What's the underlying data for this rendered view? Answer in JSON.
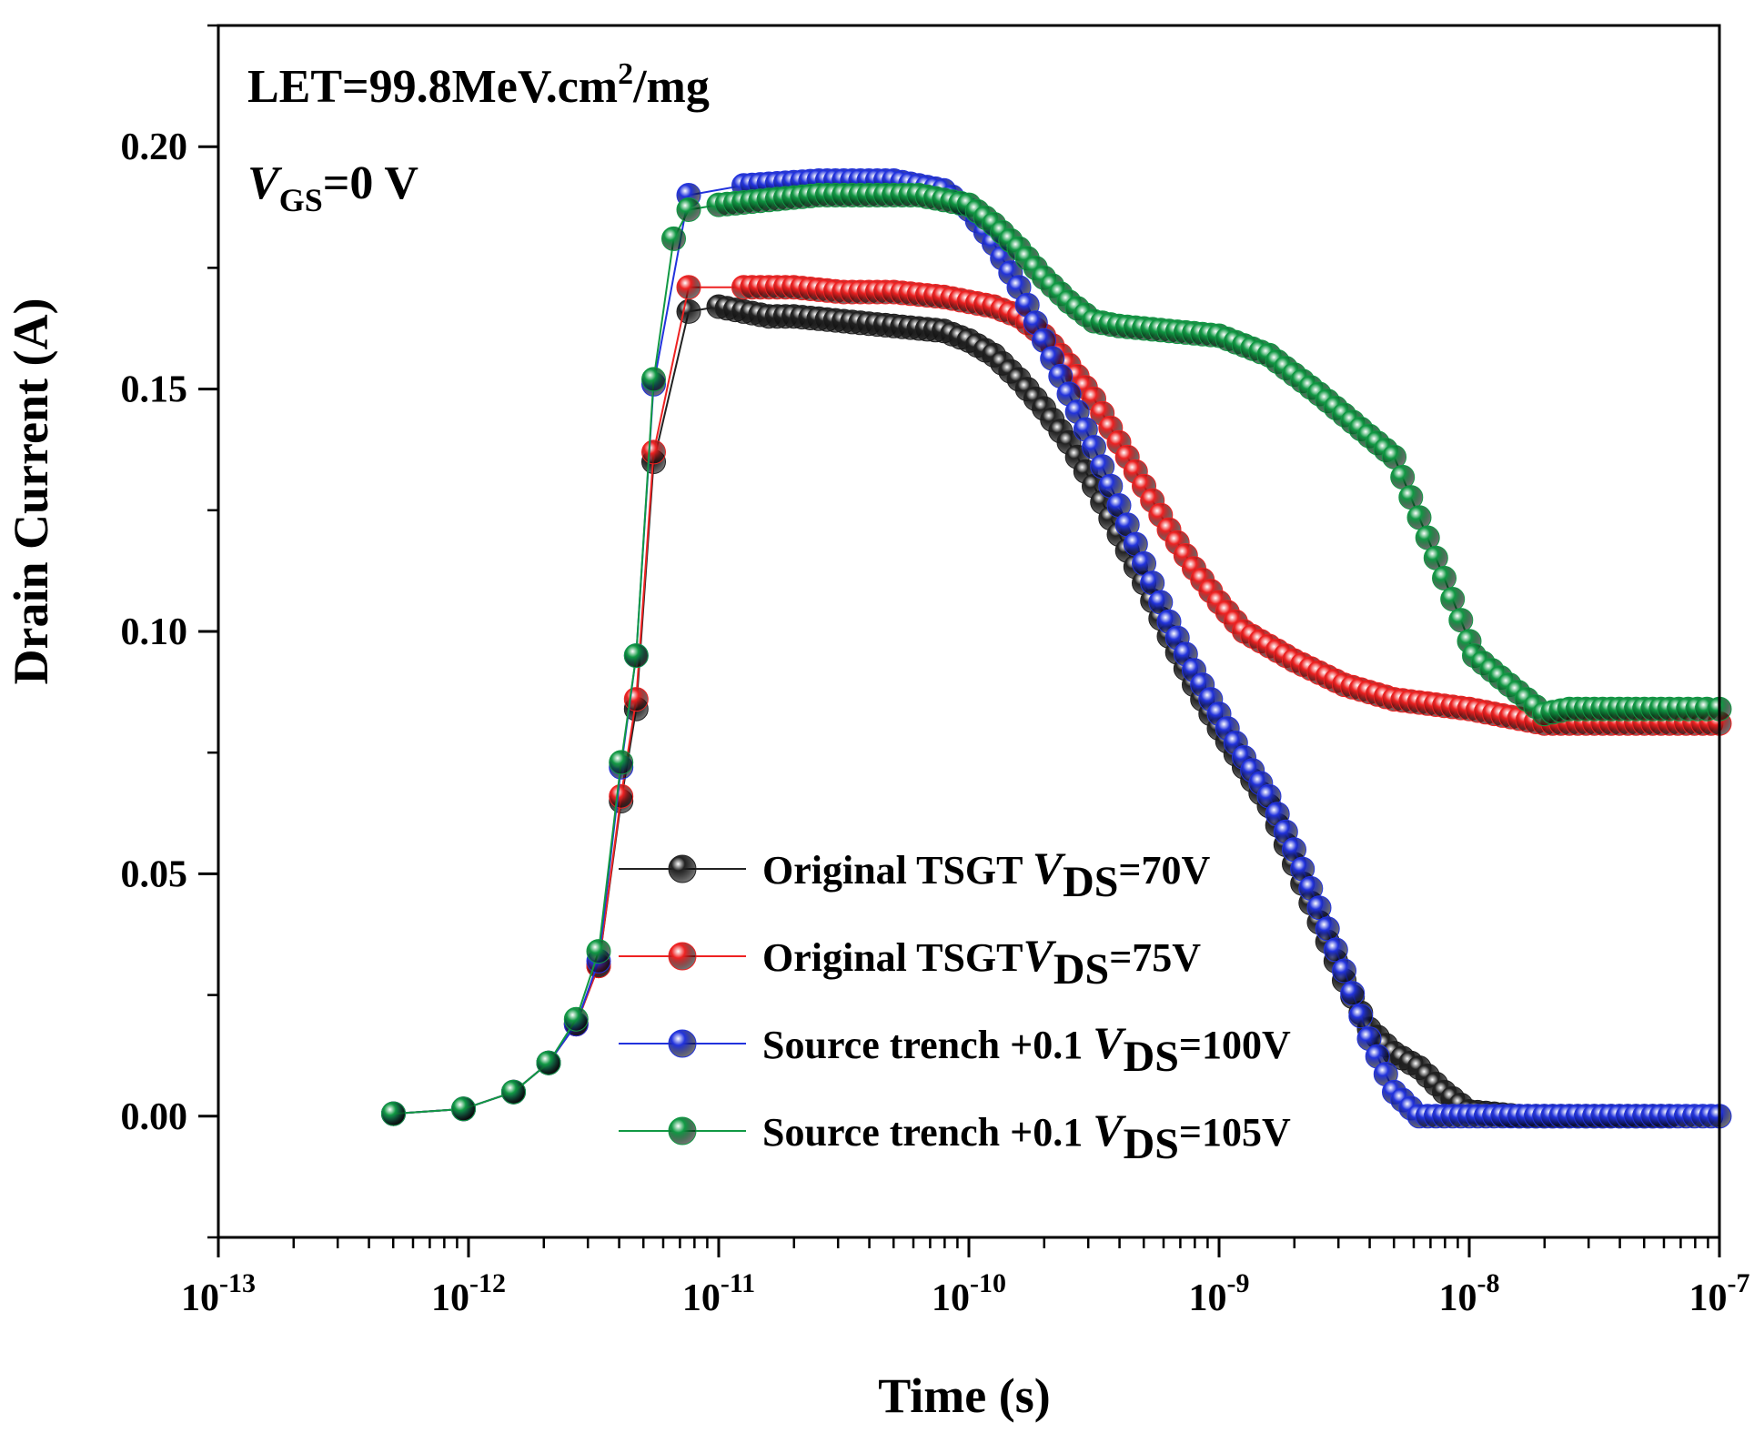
{
  "chart_data": {
    "type": "scatter",
    "xscale": "log",
    "xlim_exp": [
      -13,
      -7
    ],
    "ylim": [
      -0.025,
      0.225
    ],
    "xlabel": "Time (s)",
    "ylabel": "Drain Current (A)",
    "xtick_exponents": [
      "-13",
      "-12",
      "-11",
      "-10",
      "-9",
      "-8",
      "-7"
    ],
    "ytick_labels": [
      "0.00",
      "0.05",
      "0.10",
      "0.15",
      "0.20"
    ],
    "annotations": {
      "let_prefix": "LET=99.8MeV.cm",
      "let_sup": "2",
      "let_suffix": "/mg",
      "vgs_v": "V",
      "vgs_sub": "GS",
      "vgs_value": "=0 V"
    },
    "legend": [
      {
        "label": "Original TSGT ",
        "v": "V",
        "sub": "DS",
        "value": "=70V"
      },
      {
        "label": "Original  TSGT",
        "v": "V",
        "sub": "DS",
        "value": "=75V"
      },
      {
        "label": "Source trench +0.1 ",
        "v": "V",
        "sub": "DS",
        "value": "=100V"
      },
      {
        "label": "Source trench +0.1 ",
        "v": "V",
        "sub": "DS",
        "value": "=105V"
      }
    ],
    "series": [
      {
        "name": "Original TSGT VDS=70V",
        "color": "#222222",
        "points": [
          [
            -12.3,
            0.0005
          ],
          [
            -12.02,
            0.0015
          ],
          [
            -11.82,
            0.005
          ],
          [
            -11.68,
            0.011
          ],
          [
            -11.57,
            0.019
          ],
          [
            -11.48,
            0.031
          ],
          [
            -11.39,
            0.065
          ],
          [
            -11.33,
            0.084
          ],
          [
            -11.26,
            0.135
          ],
          [
            -11.12,
            0.166
          ],
          [
            -11.0,
            0.167
          ],
          [
            -10.9,
            0.166
          ],
          [
            -10.8,
            0.165
          ],
          [
            -10.7,
            0.165
          ],
          [
            -10.5,
            0.164
          ],
          [
            -10.3,
            0.163
          ],
          [
            -10.1,
            0.162
          ],
          [
            -10.0,
            0.16
          ],
          [
            -9.9,
            0.157
          ],
          [
            -9.8,
            0.152
          ],
          [
            -9.7,
            0.146
          ],
          [
            -9.6,
            0.139
          ],
          [
            -9.5,
            0.13
          ],
          [
            -9.4,
            0.12
          ],
          [
            -9.3,
            0.11
          ],
          [
            -9.2,
            0.099
          ],
          [
            -9.1,
            0.089
          ],
          [
            -9.0,
            0.08
          ],
          [
            -8.9,
            0.072
          ],
          [
            -8.8,
            0.064
          ],
          [
            -8.7,
            0.052
          ],
          [
            -8.6,
            0.04
          ],
          [
            -8.5,
            0.028
          ],
          [
            -8.4,
            0.018
          ],
          [
            -8.3,
            0.013
          ],
          [
            -8.2,
            0.01
          ],
          [
            -8.1,
            0.005
          ],
          [
            -8.0,
            0.001
          ],
          [
            -7.8,
            0.0
          ],
          [
            -7.6,
            0.0
          ],
          [
            -7.4,
            0.0
          ],
          [
            -7.2,
            0.0
          ]
        ]
      },
      {
        "name": "Original TSGT VDS=75V",
        "color": "#ee2222",
        "points": [
          [
            -12.3,
            0.0005
          ],
          [
            -12.02,
            0.0015
          ],
          [
            -11.82,
            0.005
          ],
          [
            -11.68,
            0.011
          ],
          [
            -11.57,
            0.019
          ],
          [
            -11.48,
            0.031
          ],
          [
            -11.39,
            0.066
          ],
          [
            -11.33,
            0.086
          ],
          [
            -11.26,
            0.137
          ],
          [
            -11.12,
            0.171
          ],
          [
            -10.9,
            0.171
          ],
          [
            -10.7,
            0.171
          ],
          [
            -10.5,
            0.17
          ],
          [
            -10.3,
            0.17
          ],
          [
            -10.1,
            0.169
          ],
          [
            -9.9,
            0.167
          ],
          [
            -9.8,
            0.165
          ],
          [
            -9.7,
            0.161
          ],
          [
            -9.6,
            0.155
          ],
          [
            -9.5,
            0.148
          ],
          [
            -9.4,
            0.139
          ],
          [
            -9.3,
            0.13
          ],
          [
            -9.2,
            0.121
          ],
          [
            -9.1,
            0.113
          ],
          [
            -9.0,
            0.106
          ],
          [
            -8.9,
            0.1
          ],
          [
            -8.7,
            0.094
          ],
          [
            -8.5,
            0.089
          ],
          [
            -8.3,
            0.086
          ],
          [
            -8.0,
            0.084
          ],
          [
            -7.7,
            0.081
          ],
          [
            -7.4,
            0.081
          ],
          [
            -7.1,
            0.081
          ],
          [
            -7.0,
            0.081
          ]
        ]
      },
      {
        "name": "Source trench +0.1 VDS=100V",
        "color": "#2233dd",
        "points": [
          [
            -12.3,
            0.0005
          ],
          [
            -12.02,
            0.0015
          ],
          [
            -11.82,
            0.005
          ],
          [
            -11.68,
            0.011
          ],
          [
            -11.57,
            0.019
          ],
          [
            -11.48,
            0.032
          ],
          [
            -11.39,
            0.072
          ],
          [
            -11.33,
            0.095
          ],
          [
            -11.26,
            0.151
          ],
          [
            -11.12,
            0.19
          ],
          [
            -10.9,
            0.192
          ],
          [
            -10.6,
            0.193
          ],
          [
            -10.3,
            0.193
          ],
          [
            -10.1,
            0.191
          ],
          [
            -10.0,
            0.187
          ],
          [
            -9.9,
            0.18
          ],
          [
            -9.8,
            0.171
          ],
          [
            -9.7,
            0.16
          ],
          [
            -9.6,
            0.149
          ],
          [
            -9.5,
            0.138
          ],
          [
            -9.4,
            0.126
          ],
          [
            -9.3,
            0.114
          ],
          [
            -9.2,
            0.102
          ],
          [
            -9.1,
            0.092
          ],
          [
            -9.0,
            0.083
          ],
          [
            -8.9,
            0.074
          ],
          [
            -8.8,
            0.066
          ],
          [
            -8.7,
            0.055
          ],
          [
            -8.6,
            0.043
          ],
          [
            -8.5,
            0.03
          ],
          [
            -8.4,
            0.016
          ],
          [
            -8.3,
            0.005
          ],
          [
            -8.2,
            0.0
          ],
          [
            -8.0,
            0.0
          ],
          [
            -7.8,
            0.0
          ],
          [
            -7.6,
            0.0
          ],
          [
            -7.4,
            0.0
          ],
          [
            -7.2,
            0.0
          ],
          [
            -7.0,
            0.0
          ]
        ]
      },
      {
        "name": "Source trench +0.1 VDS=105V",
        "color": "#119944",
        "points": [
          [
            -12.3,
            0.0005
          ],
          [
            -12.02,
            0.0015
          ],
          [
            -11.82,
            0.005
          ],
          [
            -11.68,
            0.011
          ],
          [
            -11.57,
            0.02
          ],
          [
            -11.48,
            0.034
          ],
          [
            -11.39,
            0.073
          ],
          [
            -11.33,
            0.095
          ],
          [
            -11.26,
            0.152
          ],
          [
            -11.18,
            0.181
          ],
          [
            -11.12,
            0.187
          ],
          [
            -11.0,
            0.188
          ],
          [
            -10.8,
            0.189
          ],
          [
            -10.6,
            0.19
          ],
          [
            -10.4,
            0.19
          ],
          [
            -10.2,
            0.19
          ],
          [
            -10.0,
            0.188
          ],
          [
            -9.9,
            0.184
          ],
          [
            -9.8,
            0.179
          ],
          [
            -9.7,
            0.173
          ],
          [
            -9.6,
            0.168
          ],
          [
            -9.5,
            0.164
          ],
          [
            -9.4,
            0.163
          ],
          [
            -9.2,
            0.162
          ],
          [
            -9.0,
            0.161
          ],
          [
            -8.8,
            0.157
          ],
          [
            -8.6,
            0.149
          ],
          [
            -8.3,
            0.136
          ],
          [
            -8.1,
            0.111
          ],
          [
            -8.0,
            0.098
          ],
          [
            -7.98,
            0.095
          ],
          [
            -7.7,
            0.083
          ],
          [
            -7.6,
            0.084
          ],
          [
            -7.4,
            0.084
          ],
          [
            -7.2,
            0.084
          ],
          [
            -7.05,
            0.084
          ],
          [
            -7.0,
            0.084
          ]
        ]
      }
    ]
  }
}
